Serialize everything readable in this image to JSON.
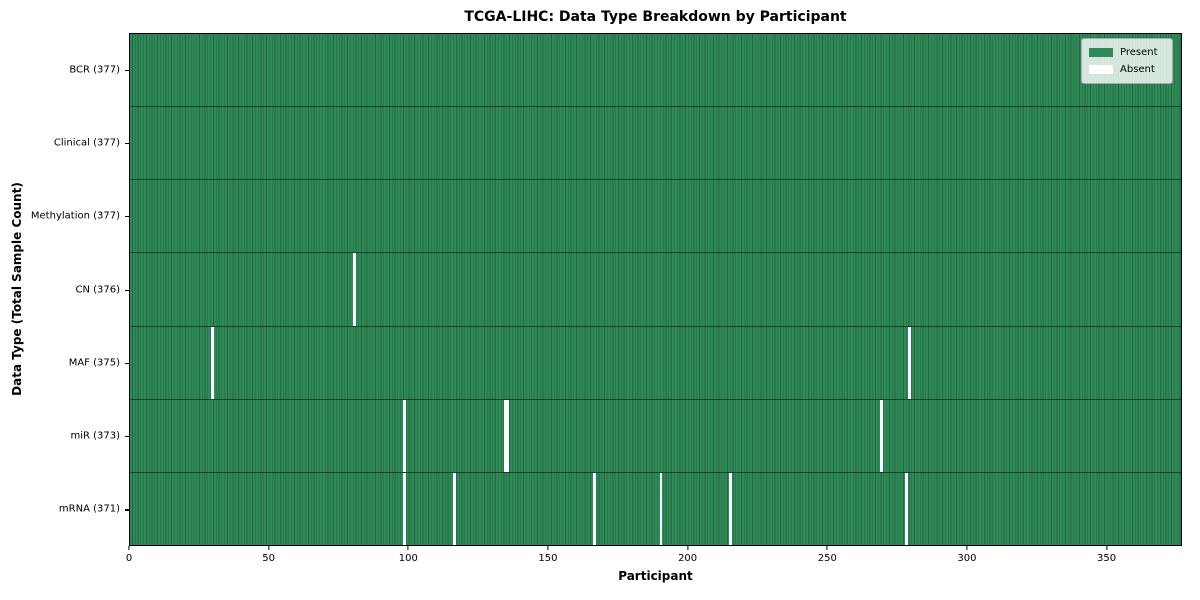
{
  "title": "TCGA-LIHC: Data Type Breakdown by Participant",
  "chart_data": {
    "type": "heatmap",
    "title": "TCGA-LIHC: Data Type Breakdown by Participant",
    "xlabel": "Participant",
    "ylabel": "Data Type (Total Sample Count)",
    "x_range": [
      0,
      377
    ],
    "x_ticks": [
      0,
      50,
      100,
      150,
      200,
      250,
      300,
      350
    ],
    "total_participants": 377,
    "grid": "cell-edges",
    "legend_position": "upper right",
    "rows": [
      {
        "name": "BCR",
        "label": "BCR (377)",
        "present_count": 377,
        "absent_participants": []
      },
      {
        "name": "Clinical",
        "label": "Clinical (377)",
        "present_count": 377,
        "absent_participants": []
      },
      {
        "name": "Methylation",
        "label": "Methylation (377)",
        "present_count": 377,
        "absent_participants": []
      },
      {
        "name": "CN",
        "label": "CN (376)",
        "present_count": 376,
        "absent_participants": [
          80
        ]
      },
      {
        "name": "MAF",
        "label": "MAF (375)",
        "present_count": 375,
        "absent_participants": [
          29,
          279
        ]
      },
      {
        "name": "miR",
        "label": "miR (373)",
        "present_count": 373,
        "absent_participants": [
          98,
          134,
          135,
          269
        ]
      },
      {
        "name": "mRNA",
        "label": "mRNA (371)",
        "present_count": 371,
        "absent_participants": [
          98,
          116,
          166,
          190,
          215,
          278
        ]
      }
    ],
    "legend": {
      "entries": [
        {
          "label": "Present",
          "color": "#2e8b57"
        },
        {
          "label": "Absent",
          "color": "#ffffff"
        }
      ]
    },
    "colors": {
      "present": "#2e8b57",
      "absent": "#ffffff",
      "cell_edge": "#21663f",
      "row_separator": "#0a2416",
      "plot_border": "#000000",
      "legend_background": "rgba(255,255,255,0.8)"
    }
  }
}
